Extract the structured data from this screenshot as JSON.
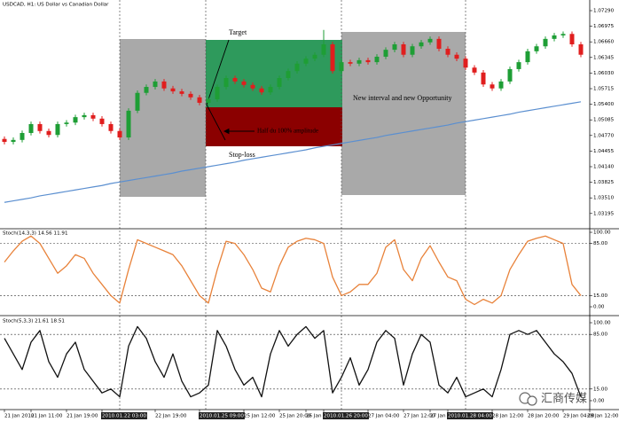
{
  "chart_data": [
    {
      "type": "candlestick",
      "title": "USDCAD, H1: US Dollar vs Canadian Dollar",
      "open": [
        1.047,
        1.0464,
        1.0468,
        1.0482,
        1.05,
        1.0486,
        1.0478,
        1.05,
        1.0503,
        1.0514,
        1.0518,
        1.0511,
        1.05,
        1.0486,
        1.0473,
        1.0527,
        1.0563,
        1.0575,
        1.0586,
        1.0572,
        1.0566,
        1.0561,
        1.0554,
        1.0543,
        1.055,
        1.0575,
        1.0593,
        1.0586,
        1.0579,
        1.0572,
        1.0564,
        1.0575,
        1.0593,
        1.0607,
        1.0622,
        1.0632,
        1.064,
        1.0661,
        1.0607,
        1.0625,
        1.0622,
        1.0629,
        1.0625,
        1.0636,
        1.065,
        1.0661,
        1.064,
        1.0657,
        1.0665,
        1.0672,
        1.0652,
        1.064,
        1.0632,
        1.0614,
        1.0604,
        1.058,
        1.0572,
        1.0586,
        1.0611,
        1.0625,
        1.0647,
        1.0657,
        1.0672,
        1.0679,
        1.0682,
        1.0661
      ],
      "high": [
        1.0475,
        1.0473,
        1.0487,
        1.0505,
        1.0505,
        1.0491,
        1.0505,
        1.0508,
        1.0519,
        1.0523,
        1.0523,
        1.0516,
        1.0505,
        1.0491,
        1.0532,
        1.0568,
        1.058,
        1.0591,
        1.0591,
        1.0577,
        1.0571,
        1.0566,
        1.0559,
        1.0555,
        1.058,
        1.0598,
        1.0598,
        1.0591,
        1.0584,
        1.0577,
        1.058,
        1.0598,
        1.0612,
        1.0627,
        1.0637,
        1.0645,
        1.069,
        1.0666,
        1.063,
        1.063,
        1.0634,
        1.0634,
        1.0641,
        1.0655,
        1.0666,
        1.0666,
        1.0662,
        1.067,
        1.0677,
        1.0677,
        1.0657,
        1.0645,
        1.0637,
        1.0619,
        1.0609,
        1.0585,
        1.0591,
        1.0616,
        1.063,
        1.0652,
        1.0662,
        1.0677,
        1.0684,
        1.0687,
        1.0687,
        1.0666
      ],
      "low": [
        1.0459,
        1.0459,
        1.0463,
        1.0477,
        1.0481,
        1.0473,
        1.0473,
        1.0495,
        1.0498,
        1.0509,
        1.0506,
        1.0495,
        1.0481,
        1.0468,
        1.0468,
        1.0522,
        1.0558,
        1.057,
        1.0567,
        1.0561,
        1.0556,
        1.0549,
        1.0538,
        1.0538,
        1.0545,
        1.057,
        1.0581,
        1.0574,
        1.0567,
        1.0559,
        1.0559,
        1.057,
        1.0588,
        1.0602,
        1.0617,
        1.0627,
        1.0635,
        1.0602,
        1.0602,
        1.0617,
        1.0617,
        1.062,
        1.062,
        1.0631,
        1.0645,
        1.0635,
        1.0635,
        1.0652,
        1.066,
        1.0647,
        1.0635,
        1.0627,
        1.0609,
        1.0599,
        1.0575,
        1.0567,
        1.0567,
        1.0581,
        1.0606,
        1.062,
        1.0642,
        1.0652,
        1.0667,
        1.0674,
        1.0656,
        1.0635
      ],
      "close": [
        1.0464,
        1.0468,
        1.0482,
        1.05,
        1.0486,
        1.0478,
        1.05,
        1.0503,
        1.0514,
        1.0518,
        1.0511,
        1.05,
        1.0486,
        1.0473,
        1.0527,
        1.0563,
        1.0575,
        1.0586,
        1.0572,
        1.0566,
        1.0561,
        1.0554,
        1.0543,
        1.055,
        1.0575,
        1.0593,
        1.0586,
        1.0579,
        1.0572,
        1.0564,
        1.0575,
        1.0593,
        1.0607,
        1.0622,
        1.0632,
        1.064,
        1.0661,
        1.0607,
        1.0625,
        1.0622,
        1.0629,
        1.0625,
        1.0636,
        1.065,
        1.0661,
        1.064,
        1.0657,
        1.0665,
        1.0672,
        1.0652,
        1.064,
        1.0632,
        1.0614,
        1.0604,
        1.058,
        1.0572,
        1.0586,
        1.0611,
        1.0625,
        1.0647,
        1.0657,
        1.0672,
        1.0679,
        1.0682,
        1.0661,
        1.064
      ],
      "up_color": "#1e9e35",
      "down_color": "#e01e1e",
      "ma": [
        1.0342,
        1.0345,
        1.0348,
        1.0351,
        1.0355,
        1.0358,
        1.0361,
        1.0364,
        1.0367,
        1.037,
        1.0373,
        1.0376,
        1.038,
        1.0383,
        1.0386,
        1.0389,
        1.0392,
        1.0395,
        1.0398,
        1.0401,
        1.0405,
        1.0408,
        1.0411,
        1.0414,
        1.0417,
        1.042,
        1.0423,
        1.0427,
        1.043,
        1.0433,
        1.0436,
        1.0439,
        1.0442,
        1.0445,
        1.0448,
        1.0452,
        1.0455,
        1.0458,
        1.0461,
        1.0464,
        1.0467,
        1.047,
        1.0473,
        1.0477,
        1.048,
        1.0483,
        1.0486,
        1.0489,
        1.0492,
        1.0495,
        1.0498,
        1.0502,
        1.0505,
        1.0508,
        1.0511,
        1.0514,
        1.0517,
        1.052,
        1.0524,
        1.0527,
        1.053,
        1.0533,
        1.0536,
        1.0539,
        1.0542,
        1.0545
      ],
      "ma_color": "#5b8fd0",
      "ylim": [
        1.02887,
        1.07505
      ],
      "yticks": [
        {
          "value": 1.0729,
          "label": "1.07290"
        },
        {
          "value": 1.06975,
          "label": "1.06975"
        },
        {
          "value": 1.0666,
          "label": "1.06660"
        },
        {
          "value": 1.06345,
          "label": "1.06345"
        },
        {
          "value": 1.0603,
          "label": "1.06030"
        },
        {
          "value": 1.05715,
          "label": "1.05715"
        },
        {
          "value": 1.054,
          "label": "1.05400"
        },
        {
          "value": 1.05085,
          "label": "1.05085"
        },
        {
          "value": 1.0477,
          "label": "1.04770"
        },
        {
          "value": 1.04455,
          "label": "1.04455"
        },
        {
          "value": 1.0414,
          "label": "1.04140"
        },
        {
          "value": 1.03825,
          "label": "1.03825"
        },
        {
          "value": 1.0351,
          "label": "1.03510"
        },
        {
          "value": 1.03195,
          "label": "1.03195"
        }
      ],
      "xticks": [
        {
          "value": 0,
          "label": "21 Jan 2010"
        },
        {
          "value": 3,
          "label": "21 Jan 11:00"
        },
        {
          "value": 7,
          "label": "21 Jan 19:00"
        },
        {
          "value": 11,
          "label": "2010.01.22 03:00",
          "highlight": true
        },
        {
          "value": 17,
          "label": "22 Jan 19:00"
        },
        {
          "value": 22,
          "label": "2010.01.25 09:00",
          "highlight": true
        },
        {
          "value": 27,
          "label": "25 Jan 12:00"
        },
        {
          "value": 31,
          "label": "25 Jan 20:00"
        },
        {
          "value": 34,
          "label": "26 Jan 04:00"
        },
        {
          "value": 36,
          "label": "2010.01.26 20:00",
          "highlight": true
        },
        {
          "value": 41,
          "label": "27 Jan 04:00"
        },
        {
          "value": 45,
          "label": "27 Jan 12:00"
        },
        {
          "value": 48,
          "label": "27 Jan 20:00"
        },
        {
          "value": 50,
          "label": "2010.01.28 04:00",
          "highlight": true
        },
        {
          "value": 55,
          "label": "28 Jan 12:00"
        },
        {
          "value": 59,
          "label": "28 Jan 20:00"
        },
        {
          "value": 63,
          "label": "29 Jan 04:00"
        },
        {
          "value": 66,
          "label": "29 Jan 12:00"
        }
      ],
      "annotations": {
        "target": "Target",
        "half": "Half du 100% amplitude",
        "stop": "Stop-loss",
        "interval": "New interval and new Opportunity"
      }
    },
    {
      "type": "line",
      "title": "Stoch(14,3,3) 14.56 11.91",
      "values": [
        60,
        75,
        88,
        95,
        85,
        65,
        45,
        55,
        70,
        65,
        45,
        30,
        15,
        5,
        50,
        90,
        85,
        80,
        75,
        70,
        55,
        35,
        15,
        5,
        50,
        88,
        85,
        70,
        50,
        25,
        20,
        55,
        80,
        88,
        92,
        90,
        85,
        40,
        15,
        20,
        30,
        30,
        45,
        80,
        90,
        50,
        35,
        65,
        82,
        60,
        40,
        35,
        10,
        3,
        10,
        5,
        15,
        50,
        70,
        88,
        92,
        95,
        90,
        85,
        30,
        15
      ],
      "color": "#e8823a",
      "ylim": [
        -9.5,
        104.8
      ],
      "yticks": [
        {
          "value": 100,
          "label": "100.00"
        },
        {
          "value": 85,
          "label": "85.00"
        },
        {
          "value": 15,
          "label": "15.00"
        },
        {
          "value": 0,
          "label": "0.00"
        }
      ],
      "levels": [
        85,
        15
      ]
    },
    {
      "type": "line",
      "title": "Stoch(5,3,3) 21.61 18.51",
      "values": [
        80,
        60,
        40,
        75,
        90,
        50,
        30,
        60,
        75,
        40,
        25,
        10,
        15,
        5,
        70,
        95,
        80,
        50,
        30,
        60,
        25,
        5,
        10,
        20,
        90,
        70,
        40,
        20,
        30,
        5,
        60,
        90,
        70,
        85,
        95,
        80,
        90,
        10,
        30,
        55,
        20,
        40,
        75,
        90,
        80,
        20,
        60,
        85,
        75,
        20,
        10,
        30,
        5,
        10,
        15,
        5,
        40,
        85,
        90,
        85,
        90,
        75,
        60,
        50,
        35,
        5
      ],
      "color": "#111111",
      "ylim": [
        -11.4,
        109.1
      ],
      "yticks": [
        {
          "value": 100,
          "label": "100.00"
        },
        {
          "value": 85,
          "label": "85.00"
        },
        {
          "value": 15,
          "label": "15.00"
        },
        {
          "value": 0,
          "label": "0.00"
        }
      ],
      "levels": [
        85,
        15
      ]
    }
  ],
  "watermark": "汇商传媒"
}
